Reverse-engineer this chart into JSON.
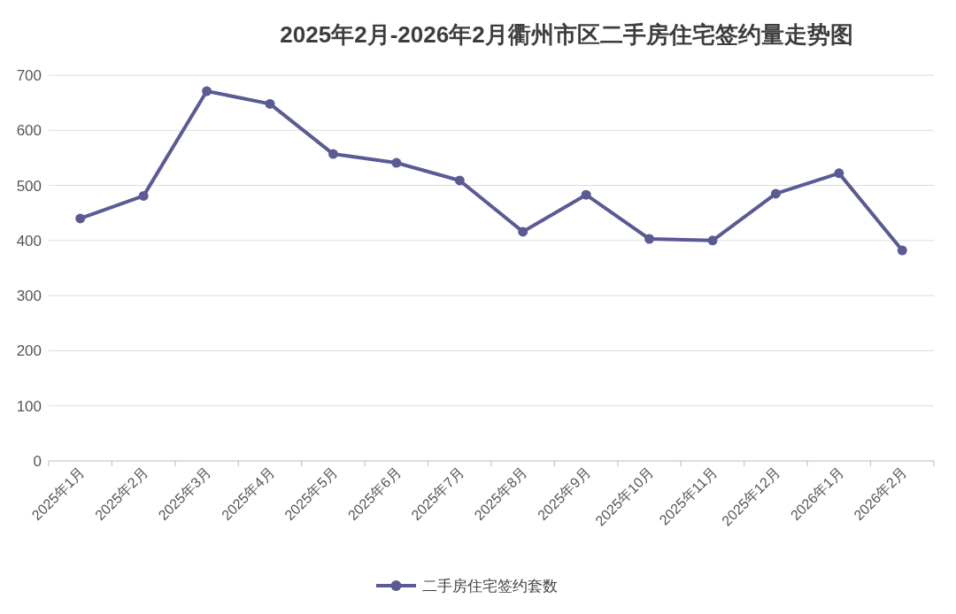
{
  "chart_data": {
    "type": "line",
    "title": "2025年2月-2026年2月衢州市区二手房住宅签约量走势图",
    "categories": [
      "2025年1月",
      "2025年2月",
      "2025年3月",
      "2025年4月",
      "2025年5月",
      "2025年6月",
      "2025年7月",
      "2025年8月",
      "2025年9月",
      "2025年10月",
      "2025年11月",
      "2025年12月",
      "2026年1月",
      "2026年2月"
    ],
    "series": [
      {
        "name": "二手房住宅签约套数",
        "color": "#5a5b94",
        "values": [
          440,
          481,
          671,
          648,
          557,
          541,
          509,
          416,
          483,
          403,
          400,
          485,
          522,
          382
        ]
      }
    ],
    "ylim": [
      0,
      700
    ],
    "yticks": [
      0,
      100,
      200,
      300,
      400,
      500,
      600,
      700
    ],
    "grid": "y",
    "legend": "bottom",
    "marker": "circle",
    "line_style": "solid"
  }
}
